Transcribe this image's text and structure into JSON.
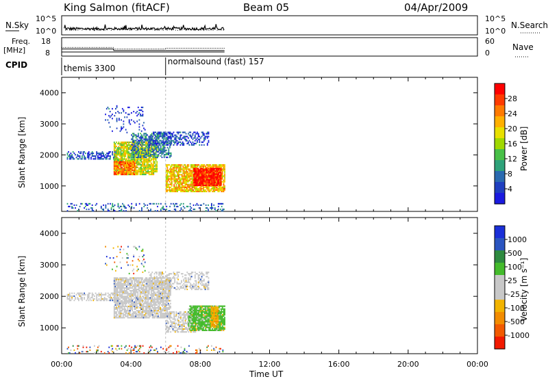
{
  "header": {
    "station": "King Salmon (fitACF)",
    "beam": "Beam 05",
    "date": "04/Apr/2009"
  },
  "strips": {
    "nsky_label": "N.Sky",
    "nsky_ticks": [
      "10^5",
      "10^0"
    ],
    "nsearch_label": "N.Search",
    "nsearch_ticks": [
      "10^5",
      "10^0"
    ],
    "freq_label_line1": "Freq.",
    "freq_label_line2": "[MHz]",
    "freq_ticks": [
      "18",
      "8"
    ],
    "nave_label": "Nave",
    "nave_ticks": [
      "60",
      "0"
    ],
    "cpid_label": "CPID",
    "cpid_segments": [
      {
        "name": "themis 3300",
        "start": 0.0,
        "end": 6.0
      },
      {
        "name": "normalsound (fast) 157",
        "start": 6.0,
        "end": 24.0
      }
    ],
    "freq_steps": [
      {
        "start": 0.0,
        "end": 3.0,
        "value": 11.8
      },
      {
        "start": 3.0,
        "end": 6.0,
        "value": 10.8
      },
      {
        "start": 6.0,
        "end": 9.4,
        "value": 10.8
      }
    ],
    "nave_steps": [
      {
        "start": 0.0,
        "end": 3.0,
        "value": 29
      },
      {
        "start": 3.0,
        "end": 6.0,
        "value": 23
      },
      {
        "start": 6.0,
        "end": 9.4,
        "value": 26
      }
    ]
  },
  "chart_data": [
    {
      "type": "heatmap",
      "quantity": "Power",
      "xlabel": "",
      "ylabel": "Slant Range [km]",
      "xlim": [
        0,
        24
      ],
      "ylim": [
        180,
        4500
      ],
      "yticks": [
        "1000",
        "2000",
        "3000",
        "4000"
      ],
      "colorbar_label": "Power [dB]",
      "colorbar_ticks": [
        "28",
        "24",
        "20",
        "16",
        "12",
        "8",
        "4"
      ],
      "colorbar_colors": [
        "#ff0000",
        "#ff3b00",
        "#ff7a00",
        "#ffb000",
        "#e8e000",
        "#a0d800",
        "#48c048",
        "#2ea27a",
        "#2a6ab0",
        "#1f3fc0",
        "#1a1ae0"
      ],
      "regions": [
        {
          "start": 0.3,
          "end": 3.2,
          "rmin": 1850,
          "rmax": 2100,
          "level": 0.15,
          "density": 0.5
        },
        {
          "start": 3.0,
          "end": 5.5,
          "rmin": 1350,
          "rmax": 2400,
          "level": 0.55,
          "density": 0.8
        },
        {
          "start": 3.0,
          "end": 4.3,
          "rmin": 1350,
          "rmax": 1800,
          "level": 0.75,
          "density": 0.9
        },
        {
          "start": 4.0,
          "end": 6.3,
          "rmin": 1900,
          "rmax": 2700,
          "level": 0.25,
          "density": 0.55
        },
        {
          "start": 5.0,
          "end": 8.5,
          "rmin": 2300,
          "rmax": 2750,
          "level": 0.15,
          "density": 0.45
        },
        {
          "start": 2.5,
          "end": 4.8,
          "rmin": 2700,
          "rmax": 3600,
          "level": 0.1,
          "density": 0.1
        },
        {
          "start": 6.0,
          "end": 9.4,
          "rmin": 800,
          "rmax": 1700,
          "level": 0.65,
          "density": 0.8
        },
        {
          "start": 7.6,
          "end": 9.2,
          "rmin": 1000,
          "rmax": 1550,
          "level": 0.95,
          "density": 0.9
        },
        {
          "start": 0.3,
          "end": 9.4,
          "rmin": 180,
          "rmax": 450,
          "level": 0.2,
          "density": 0.2
        }
      ]
    },
    {
      "type": "heatmap",
      "quantity": "Velocity",
      "xlabel": "Time UT",
      "ylabel": "Slant Range [km]",
      "xlim": [
        0,
        24
      ],
      "ylim": [
        180,
        4500
      ],
      "xticks": [
        "00:00",
        "04:00",
        "08:00",
        "12:00",
        "16:00",
        "20:00",
        "00:00"
      ],
      "yticks": [
        "1000",
        "2000",
        "3000",
        "4000"
      ],
      "colorbar_label": "Velocity [m s⁻¹]",
      "colorbar_ticks": [
        "1000",
        "500",
        "100",
        "25",
        "-25",
        "-100",
        "-500",
        "-1000"
      ],
      "colorbar_colors": [
        "#1a2fd8",
        "#2a55c0",
        "#2e8a40",
        "#44bb2c",
        "#c8c8c8",
        "#c8c8c8",
        "#f2b400",
        "#f28c00",
        "#f25a00",
        "#f21a00"
      ],
      "regions": [
        {
          "start": 0.3,
          "end": 3.2,
          "rmin": 1850,
          "rmax": 2100,
          "cls": "ground",
          "density": 0.55
        },
        {
          "start": 3.0,
          "end": 6.3,
          "rmin": 1300,
          "rmax": 2600,
          "cls": "ground",
          "density": 0.8
        },
        {
          "start": 5.0,
          "end": 8.5,
          "rmin": 2200,
          "rmax": 2750,
          "cls": "ground",
          "density": 0.45
        },
        {
          "start": 6.0,
          "end": 7.7,
          "rmin": 850,
          "rmax": 1500,
          "cls": "ground",
          "density": 0.6
        },
        {
          "start": 7.3,
          "end": 9.4,
          "rmin": 900,
          "rmax": 1700,
          "cls": "green",
          "density": 0.9
        },
        {
          "start": 8.6,
          "end": 9.0,
          "rmin": 1000,
          "rmax": 1650,
          "cls": "orange",
          "density": 0.85
        },
        {
          "start": 2.5,
          "end": 4.8,
          "rmin": 2700,
          "rmax": 3600,
          "cls": "mixed",
          "density": 0.1
        },
        {
          "start": 0.3,
          "end": 9.4,
          "rmin": 180,
          "rmax": 450,
          "cls": "mixed",
          "density": 0.15
        }
      ]
    }
  ]
}
